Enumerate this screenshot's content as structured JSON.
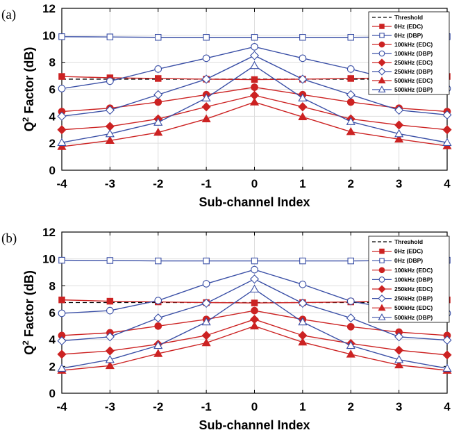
{
  "chart_data": [
    {
      "type": "line",
      "panel_label": "(a)",
      "xlabel": "Sub-channel Index",
      "ylabel_main": "Q",
      "ylabel_sup": "2",
      "ylabel_rest": " Factor (dB)",
      "x": [
        -4,
        -3,
        -2,
        -1,
        0,
        1,
        2,
        3,
        4
      ],
      "xticks": [
        "-4",
        "-3",
        "-2",
        "-1",
        "0",
        "1",
        "2",
        "3",
        "4"
      ],
      "yticks": [
        "0",
        "2",
        "4",
        "6",
        "8",
        "10",
        "12"
      ],
      "xlim": [
        -4,
        4
      ],
      "ylim": [
        0,
        12
      ],
      "grid": true,
      "legend_position": "top-right",
      "threshold": {
        "name": "Threshold",
        "values": [
          6.75,
          6.75,
          6.75,
          6.75,
          6.75,
          6.75,
          6.75,
          6.75,
          6.75
        ],
        "color": "#000000"
      },
      "series": [
        {
          "name": "0Hz (EDC)",
          "marker": "square",
          "filled": true,
          "color": "#cc2222",
          "values": [
            6.95,
            6.85,
            6.8,
            6.75,
            6.72,
            6.75,
            6.8,
            6.85,
            6.95
          ]
        },
        {
          "name": "0Hz (DBP)",
          "marker": "square",
          "filled": false,
          "color": "#3a4fa6",
          "values": [
            9.9,
            9.88,
            9.85,
            9.85,
            9.85,
            9.85,
            9.85,
            9.88,
            9.9
          ]
        },
        {
          "name": "100kHz (EDC)",
          "marker": "circle",
          "filled": true,
          "color": "#cc2222",
          "values": [
            4.35,
            4.6,
            5.05,
            5.6,
            6.15,
            5.6,
            5.05,
            4.6,
            4.35
          ]
        },
        {
          "name": "100kHz (DBP)",
          "marker": "circle",
          "filled": false,
          "color": "#3a4fa6",
          "values": [
            6.05,
            6.6,
            7.5,
            8.3,
            9.15,
            8.3,
            7.5,
            6.6,
            6.05
          ]
        },
        {
          "name": "250kHz (EDC)",
          "marker": "diamond",
          "filled": true,
          "color": "#cc2222",
          "values": [
            3.0,
            3.25,
            3.8,
            4.7,
            5.55,
            4.7,
            3.8,
            3.35,
            3.0
          ]
        },
        {
          "name": "250kHz (DBP)",
          "marker": "diamond",
          "filled": false,
          "color": "#3a4fa6",
          "values": [
            4.0,
            4.45,
            5.6,
            6.75,
            8.5,
            6.75,
            5.6,
            4.45,
            4.1
          ]
        },
        {
          "name": "500kHz (EDC)",
          "marker": "triangle",
          "filled": true,
          "color": "#cc2222",
          "values": [
            1.75,
            2.2,
            2.8,
            3.8,
            5.05,
            3.95,
            2.85,
            2.3,
            1.8
          ]
        },
        {
          "name": "500kHz (DBP)",
          "marker": "triangle",
          "filled": false,
          "color": "#3a4fa6",
          "values": [
            2.05,
            2.7,
            3.55,
            5.35,
            7.75,
            5.35,
            3.6,
            2.7,
            2.05
          ]
        }
      ]
    },
    {
      "type": "line",
      "panel_label": "(b)",
      "xlabel": "Sub-channel Index",
      "ylabel_main": "Q",
      "ylabel_sup": "2",
      "ylabel_rest": " Factor (dB)",
      "x": [
        -4,
        -3,
        -2,
        -1,
        0,
        1,
        2,
        3,
        4
      ],
      "xticks": [
        "-4",
        "-3",
        "-2",
        "-1",
        "0",
        "1",
        "2",
        "3",
        "4"
      ],
      "yticks": [
        "0",
        "2",
        "4",
        "6",
        "8",
        "10",
        "12"
      ],
      "xlim": [
        -4,
        4
      ],
      "ylim": [
        0,
        12
      ],
      "grid": true,
      "legend_position": "top-right",
      "threshold": {
        "name": "Threshold",
        "values": [
          6.75,
          6.75,
          6.75,
          6.75,
          6.75,
          6.75,
          6.75,
          6.75,
          6.75
        ],
        "color": "#000000"
      },
      "series": [
        {
          "name": "0Hz (EDC)",
          "marker": "square",
          "filled": true,
          "color": "#cc2222",
          "values": [
            6.95,
            6.85,
            6.8,
            6.75,
            6.72,
            6.75,
            6.8,
            6.85,
            6.95
          ]
        },
        {
          "name": "0Hz (DBP)",
          "marker": "square",
          "filled": false,
          "color": "#3a4fa6",
          "values": [
            9.9,
            9.88,
            9.85,
            9.85,
            9.85,
            9.85,
            9.85,
            9.88,
            9.9
          ]
        },
        {
          "name": "100kHz (EDC)",
          "marker": "circle",
          "filled": true,
          "color": "#cc2222",
          "values": [
            4.3,
            4.5,
            5.0,
            5.5,
            6.15,
            5.5,
            4.95,
            4.55,
            4.3
          ]
        },
        {
          "name": "100kHz (DBP)",
          "marker": "circle",
          "filled": false,
          "color": "#3a4fa6",
          "values": [
            5.95,
            6.15,
            6.9,
            8.15,
            9.2,
            8.1,
            6.85,
            6.2,
            5.95
          ]
        },
        {
          "name": "250kHz (EDC)",
          "marker": "diamond",
          "filled": true,
          "color": "#cc2222",
          "values": [
            2.9,
            3.15,
            3.65,
            4.3,
            5.5,
            4.3,
            3.7,
            3.2,
            2.85
          ]
        },
        {
          "name": "250kHz (DBP)",
          "marker": "diamond",
          "filled": false,
          "color": "#3a4fa6",
          "values": [
            3.9,
            4.2,
            5.6,
            6.7,
            8.5,
            6.7,
            5.6,
            4.2,
            3.95
          ]
        },
        {
          "name": "500kHz (EDC)",
          "marker": "triangle",
          "filled": true,
          "color": "#cc2222",
          "values": [
            1.7,
            2.05,
            2.95,
            3.75,
            5.0,
            3.8,
            2.9,
            2.1,
            1.7
          ]
        },
        {
          "name": "500kHz (DBP)",
          "marker": "triangle",
          "filled": false,
          "color": "#3a4fa6",
          "values": [
            1.85,
            2.5,
            3.55,
            5.3,
            7.75,
            5.3,
            3.55,
            2.5,
            1.85
          ]
        }
      ]
    }
  ]
}
